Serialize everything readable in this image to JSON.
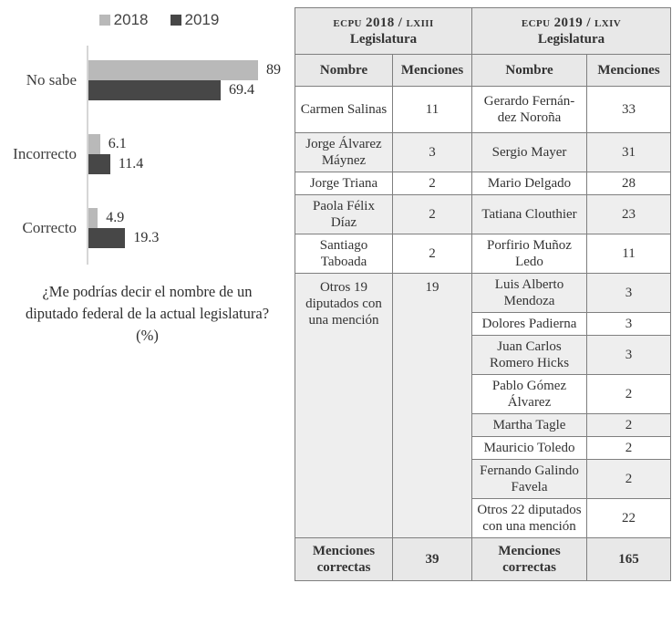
{
  "chart_data": [
    {
      "type": "bar",
      "orientation": "horizontal",
      "title": "",
      "caption": "¿Me podrías decir el nombre de un diputado federal de la actual legislatura? (%)",
      "categories": [
        "No sabe",
        "Incorrecto",
        "Correcto"
      ],
      "series": [
        {
          "name": "2018",
          "color": "#b9b9b9",
          "values": [
            89,
            6.1,
            4.9
          ]
        },
        {
          "name": "2019",
          "color": "#474747",
          "values": [
            69.4,
            11.4,
            19.3
          ]
        }
      ],
      "xlim": [
        0,
        100
      ],
      "legend_position": "top",
      "grid": false,
      "axis_line_color": "#d6d6d6"
    },
    {
      "type": "table",
      "group_headers": [
        {
          "smallcaps": "ecpu 2018 / lxiii",
          "line2": "Legislatura"
        },
        {
          "smallcaps": "ecpu 2019 / lxiv",
          "line2": "Legislatura"
        }
      ],
      "columns": [
        "Nombre",
        "Menciones",
        "Nombre",
        "Menciones"
      ],
      "rows": [
        [
          "Carmen Salinas",
          "11",
          "Gerardo Fernán-dez Noroña",
          "33"
        ],
        [
          "Jorge Álvarez Máynez",
          "3",
          "Sergio Mayer",
          "31"
        ],
        [
          "Jorge Triana",
          "2",
          "Mario Delgado",
          "28"
        ],
        [
          "Paola Félix Díaz",
          "2",
          "Tatiana Clouthier",
          "23"
        ],
        [
          "Santiago Taboada",
          "2",
          "Porfirio Muñoz Ledo",
          "11"
        ],
        [
          "Otros 19 diputados con una mención",
          "19",
          "Luis Alberto Mendoza",
          "3"
        ],
        [
          null,
          null,
          "Dolores Padierna",
          "3"
        ],
        [
          null,
          null,
          "Juan Carlos Romero Hicks",
          "3"
        ],
        [
          null,
          null,
          "Pablo Gómez Álvarez",
          "2"
        ],
        [
          null,
          null,
          "Martha Tagle",
          "2"
        ],
        [
          null,
          null,
          "Mauricio Toledo",
          "2"
        ],
        [
          null,
          null,
          "Fernando Galindo Favela",
          "2"
        ],
        [
          null,
          null,
          "Otros 22 diputados con una mención",
          "22"
        ]
      ],
      "footer": [
        "Menciones correctas",
        "39",
        "Menciones correctas",
        "165"
      ],
      "stripe_color": "#eeeeee",
      "header_color": "#e8e8e8",
      "border_color": "#7f7f7f"
    }
  ]
}
